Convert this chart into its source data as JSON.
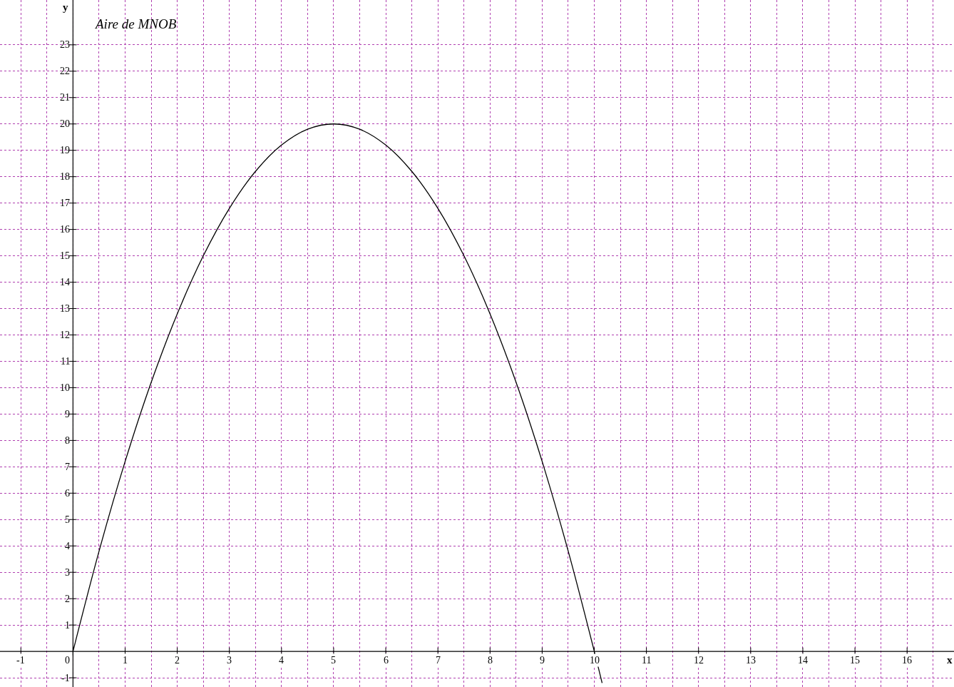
{
  "chart_data": {
    "type": "line",
    "annotations": [
      "Aire de MNOB"
    ],
    "xlabel": "x",
    "ylabel": "y",
    "x": [
      0,
      0.5,
      1,
      1.5,
      2,
      2.5,
      3,
      3.5,
      4,
      4.5,
      5,
      5.5,
      6,
      6.5,
      7,
      7.5,
      8,
      8.5,
      9,
      9.5,
      10,
      10.15
    ],
    "series": [
      {
        "color": "#000000",
        "values": [
          0,
          3.8,
          7.2,
          10.2,
          12.8,
          15,
          16.8,
          18.2,
          19.2,
          19.8,
          20,
          19.8,
          19.2,
          18.2,
          16.8,
          15,
          12.8,
          10.2,
          7.2,
          3.8,
          0,
          -1.2
        ]
      }
    ],
    "xlim": [
      -1.4,
      16.9
    ],
    "ylim": [
      -1.35,
      24.7
    ],
    "xticks": [
      -1,
      0,
      1,
      2,
      3,
      4,
      5,
      6,
      7,
      8,
      9,
      10,
      11,
      12,
      13,
      14,
      15,
      16
    ],
    "yticks": [
      -1,
      1,
      2,
      3,
      4,
      5,
      6,
      7,
      8,
      9,
      10,
      11,
      12,
      13,
      14,
      15,
      16,
      17,
      18,
      19,
      20,
      21,
      22,
      23
    ],
    "grid": true,
    "legend": false,
    "marker": "none",
    "line_style": "solid"
  }
}
